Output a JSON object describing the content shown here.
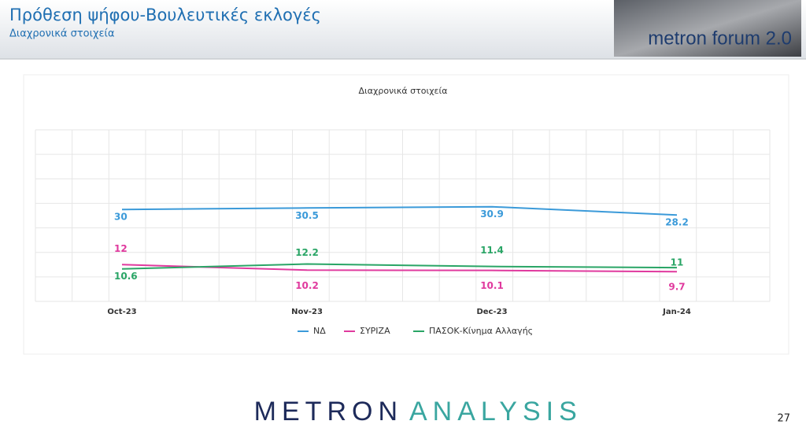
{
  "header": {
    "title": "Πρόθεση ψήφου-Βουλευτικές εκλογές",
    "subtitle": "Διαχρονικά στοιχεία",
    "logo": "metron forum 2.0"
  },
  "chart_data": {
    "type": "line",
    "title": "Διαχρονικά στοιχεία",
    "categories": [
      "Oct-23",
      "Nov-23",
      "Dec-23",
      "Jan-24"
    ],
    "series": [
      {
        "name": "ΝΔ",
        "color": "#3b9ad9",
        "values": [
          30,
          30.5,
          30.9,
          28.2
        ]
      },
      {
        "name": "ΣΥΡΙΖΑ",
        "color": "#e03a9e",
        "values": [
          12,
          10.2,
          10.1,
          9.7
        ]
      },
      {
        "name": "ΠΑΣΟΚ-Κίνημα Αλλαγής",
        "color": "#2aa566",
        "values": [
          10.6,
          12.2,
          11.4,
          11
        ]
      }
    ],
    "ylim": [
      0,
      56
    ],
    "yticks": [
      0,
      8,
      16,
      24,
      32,
      40,
      48,
      56
    ],
    "grid": true,
    "legend": "bottom"
  },
  "footer": {
    "brand_1": "METRON",
    "brand_2": "ANALYSIS",
    "page": "27"
  }
}
